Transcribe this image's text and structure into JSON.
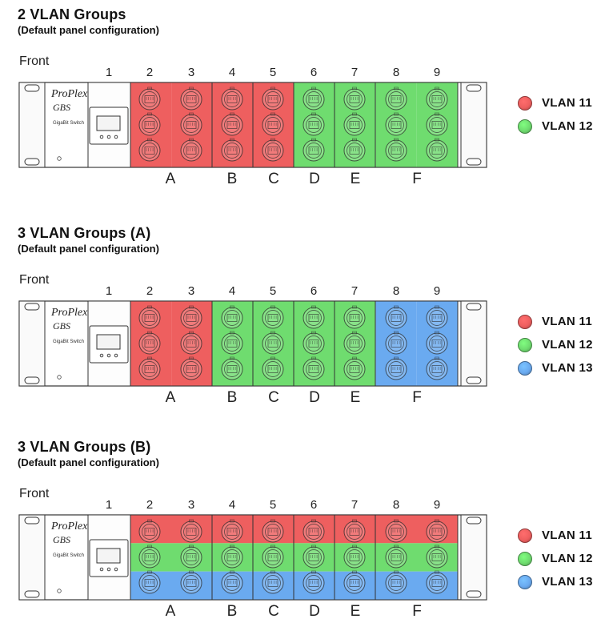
{
  "colors": {
    "vlan11": "#ee5f5f",
    "vlan12": "#6fdc6f",
    "vlan13": "#6aaaf0"
  },
  "brand": {
    "name": "ProPlex",
    "model": "GBS",
    "subtitle": "GigaBit Switch"
  },
  "front_label": "Front",
  "column_numbers": [
    "1",
    "2",
    "3",
    "4",
    "5",
    "6",
    "7",
    "8",
    "9"
  ],
  "sections": [
    {
      "title": "2 VLAN Groups",
      "subtitle": "(Default panel configuration)",
      "group_letters": [
        "A",
        "B",
        "C",
        "D",
        "E",
        "F"
      ],
      "column_vlans": [
        "vlan11",
        "vlan11",
        "vlan11",
        "vlan11",
        "vlan12",
        "vlan12",
        "vlan12",
        "vlan12"
      ],
      "row_vlans": null,
      "legend": [
        {
          "label": "VLAN 11",
          "color": "vlan11"
        },
        {
          "label": "VLAN 12",
          "color": "vlan12"
        }
      ]
    },
    {
      "title": "3 VLAN Groups (A)",
      "subtitle": "(Default panel configuration)",
      "group_letters": [
        "A",
        "B",
        "C",
        "D",
        "E",
        "F"
      ],
      "column_vlans": [
        "vlan11",
        "vlan11",
        "vlan12",
        "vlan12",
        "vlan12",
        "vlan12",
        "vlan13",
        "vlan13"
      ],
      "row_vlans": null,
      "legend": [
        {
          "label": "VLAN 11",
          "color": "vlan11"
        },
        {
          "label": "VLAN 12",
          "color": "vlan12"
        },
        {
          "label": "VLAN 13",
          "color": "vlan13"
        }
      ]
    },
    {
      "title": "3 VLAN Groups (B)",
      "subtitle": "(Default panel configuration)",
      "group_letters": [
        "A",
        "B",
        "C",
        "D",
        "E",
        "F"
      ],
      "column_vlans": null,
      "row_vlans": [
        "vlan11",
        "vlan12",
        "vlan13"
      ],
      "legend": [
        {
          "label": "VLAN 11",
          "color": "vlan11"
        },
        {
          "label": "VLAN 12",
          "color": "vlan12"
        },
        {
          "label": "VLAN 13",
          "color": "vlan13"
        }
      ]
    }
  ]
}
